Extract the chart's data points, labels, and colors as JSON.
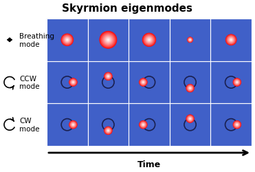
{
  "title": "Skyrmion eigenmodes",
  "title_fontsize": 11,
  "bg_color": "#4060c8",
  "grid_line_color": "#ffffff",
  "n_cols": 5,
  "n_rows": 3,
  "row_labels": [
    "Breathing\nmode",
    "CCW\nmode",
    "CW\nmode"
  ],
  "time_label": "Time",
  "breathing_radii": [
    0.3,
    0.42,
    0.33,
    0.14,
    0.27
  ],
  "ccw_angles_deg": [
    0,
    90,
    180,
    270,
    360
  ],
  "cw_angles_deg": [
    0,
    -90,
    -180,
    -270,
    -360
  ],
  "gyration_orbit_r": 0.28,
  "gyration_spot_r": 0.2,
  "orbit_color": "#1a2050",
  "orbit_linewidth": 1.2,
  "label_fontsize": 7.5,
  "label_color": "black"
}
